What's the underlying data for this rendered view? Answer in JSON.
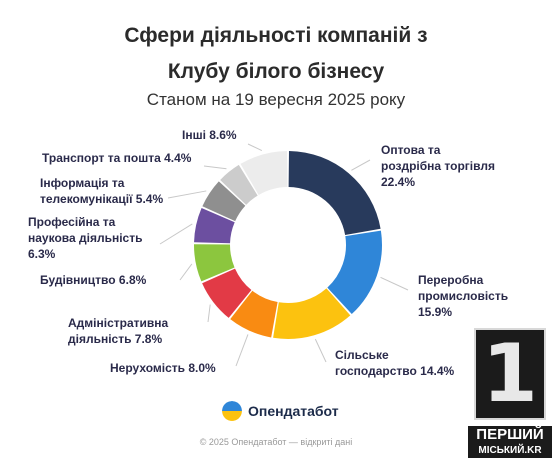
{
  "title_line1": "Сфери діяльності компаній з",
  "title_line2": "Клубу білого бізнесу",
  "subtitle": "Станом на 19 вересня 2025 року",
  "brand": "Опендатабот",
  "footer": "© 2025 Опендатабот — відкриті дані",
  "watermark": {
    "number": "1",
    "line1": "ПЕРШИЙ",
    "line2": "МІСЬКИЙ.KR"
  },
  "chart_data": {
    "type": "donut",
    "unit": "%",
    "slices": [
      {
        "label_lines": [
          "Оптова та",
          "роздрібна торгівля",
          "22.4%"
        ],
        "value": 22.4,
        "color": "#283a5c"
      },
      {
        "label_lines": [
          "Переробна",
          "промисловість",
          "15.9%"
        ],
        "value": 15.9,
        "color": "#2f86d8"
      },
      {
        "label_lines": [
          "Сільське",
          "господарство 14.4%"
        ],
        "value": 14.4,
        "color": "#fcc20f"
      },
      {
        "label_lines": [
          "Нерухомість 8.0%"
        ],
        "value": 8.0,
        "color": "#f98b12"
      },
      {
        "label_lines": [
          "Адміністративна",
          "діяльність 7.8%"
        ],
        "value": 7.8,
        "color": "#e23a46"
      },
      {
        "label_lines": [
          "Будівництво 6.8%"
        ],
        "value": 6.8,
        "color": "#8cc63e"
      },
      {
        "label_lines": [
          "Професійна та",
          "наукова діяльність",
          "6.3%"
        ],
        "value": 6.3,
        "color": "#6c4fa0"
      },
      {
        "label_lines": [
          "Інформація та",
          "телекомунікації 5.4%"
        ],
        "value": 5.4,
        "color": "#8f8f8f"
      },
      {
        "label_lines": [
          "Транспорт та пошта 4.4%"
        ],
        "value": 4.4,
        "color": "#cccccc"
      },
      {
        "label_lines": [
          "Інші 8.6%"
        ],
        "value": 8.6,
        "color": "#ececec"
      }
    ]
  }
}
